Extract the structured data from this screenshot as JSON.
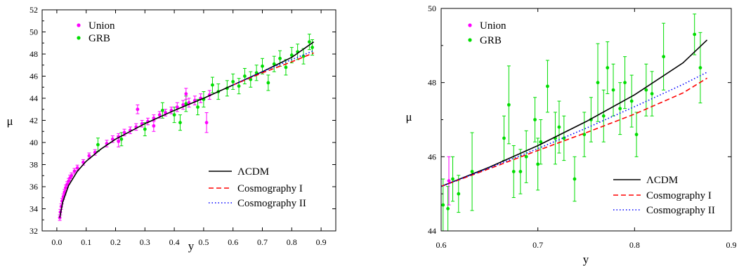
{
  "chart_data": [
    {
      "type": "scatter",
      "xlabel": "y",
      "ylabel": "μ",
      "xlim": [
        -0.05,
        0.95
      ],
      "ylim": [
        32,
        52
      ],
      "xticks": [
        0.0,
        0.1,
        0.2,
        0.3,
        0.4,
        0.5,
        0.6,
        0.7,
        0.8,
        0.9
      ],
      "yticks": [
        32,
        34,
        36,
        38,
        40,
        42,
        44,
        46,
        48,
        50,
        52
      ],
      "legend_points_position": "top-left",
      "legend_lines_position": "bottom-right",
      "series": [
        {
          "name": "Union",
          "kind": "points",
          "color": "#ff00ff",
          "points": [
            {
              "x": 0.01,
              "y": 33.2,
              "err": 0.25
            },
            {
              "x": 0.012,
              "y": 33.7,
              "err": 0.25
            },
            {
              "x": 0.015,
              "y": 34.2,
              "err": 0.25
            },
            {
              "x": 0.018,
              "y": 34.7,
              "err": 0.25
            },
            {
              "x": 0.022,
              "y": 35.1,
              "err": 0.25
            },
            {
              "x": 0.026,
              "y": 35.5,
              "err": 0.25
            },
            {
              "x": 0.03,
              "y": 35.9,
              "err": 0.25
            },
            {
              "x": 0.035,
              "y": 36.2,
              "err": 0.25
            },
            {
              "x": 0.04,
              "y": 36.5,
              "err": 0.25
            },
            {
              "x": 0.045,
              "y": 36.8,
              "err": 0.25
            },
            {
              "x": 0.05,
              "y": 37.0,
              "err": 0.25
            },
            {
              "x": 0.06,
              "y": 37.4,
              "err": 0.25
            },
            {
              "x": 0.07,
              "y": 37.7,
              "err": 0.25
            },
            {
              "x": 0.09,
              "y": 38.2,
              "err": 0.25
            },
            {
              "x": 0.11,
              "y": 38.8,
              "err": 0.25
            },
            {
              "x": 0.13,
              "y": 39.1,
              "err": 0.25
            },
            {
              "x": 0.17,
              "y": 39.9,
              "err": 0.3
            },
            {
              "x": 0.19,
              "y": 40.3,
              "err": 0.3
            },
            {
              "x": 0.21,
              "y": 40.5,
              "err": 0.3
            },
            {
              "x": 0.23,
              "y": 40.9,
              "err": 0.3
            },
            {
              "x": 0.25,
              "y": 41.1,
              "err": 0.3
            },
            {
              "x": 0.27,
              "y": 41.4,
              "err": 0.3
            },
            {
              "x": 0.29,
              "y": 41.7,
              "err": 0.3
            },
            {
              "x": 0.31,
              "y": 41.9,
              "err": 0.3
            },
            {
              "x": 0.33,
              "y": 42.2,
              "err": 0.3
            },
            {
              "x": 0.35,
              "y": 42.5,
              "err": 0.3
            },
            {
              "x": 0.37,
              "y": 42.7,
              "err": 0.3
            },
            {
              "x": 0.39,
              "y": 42.9,
              "err": 0.3
            },
            {
              "x": 0.41,
              "y": 43.2,
              "err": 0.4
            },
            {
              "x": 0.43,
              "y": 43.4,
              "err": 0.4
            },
            {
              "x": 0.45,
              "y": 43.6,
              "err": 0.4
            },
            {
              "x": 0.47,
              "y": 43.8,
              "err": 0.4
            },
            {
              "x": 0.49,
              "y": 44.0,
              "err": 0.4
            },
            {
              "x": 0.51,
              "y": 41.8,
              "err": 0.9
            },
            {
              "x": 0.52,
              "y": 44.3,
              "err": 0.4
            },
            {
              "x": 0.21,
              "y": 40.1,
              "err": 0.5
            },
            {
              "x": 0.275,
              "y": 43.0,
              "err": 0.4
            },
            {
              "x": 0.33,
              "y": 41.5,
              "err": 0.5
            },
            {
              "x": 0.44,
              "y": 44.4,
              "err": 0.5
            }
          ]
        },
        {
          "name": "GRB",
          "kind": "points",
          "color": "#00dd00",
          "points": [
            {
              "x": 0.14,
              "y": 39.8,
              "err": 0.6
            },
            {
              "x": 0.22,
              "y": 40.3,
              "err": 0.6
            },
            {
              "x": 0.3,
              "y": 41.2,
              "err": 0.6
            },
            {
              "x": 0.36,
              "y": 42.9,
              "err": 0.7
            },
            {
              "x": 0.4,
              "y": 42.5,
              "err": 0.7
            },
            {
              "x": 0.42,
              "y": 41.8,
              "err": 0.7
            },
            {
              "x": 0.44,
              "y": 43.5,
              "err": 0.7
            },
            {
              "x": 0.48,
              "y": 43.2,
              "err": 0.7
            },
            {
              "x": 0.5,
              "y": 43.9,
              "err": 0.7
            },
            {
              "x": 0.53,
              "y": 45.2,
              "err": 0.7
            },
            {
              "x": 0.55,
              "y": 44.6,
              "err": 0.7
            },
            {
              "x": 0.58,
              "y": 44.9,
              "err": 0.7
            },
            {
              "x": 0.6,
              "y": 45.5,
              "err": 0.7
            },
            {
              "x": 0.62,
              "y": 45.1,
              "err": 0.7
            },
            {
              "x": 0.64,
              "y": 46.0,
              "err": 0.7
            },
            {
              "x": 0.66,
              "y": 45.7,
              "err": 0.7
            },
            {
              "x": 0.68,
              "y": 46.3,
              "err": 0.7
            },
            {
              "x": 0.7,
              "y": 46.9,
              "err": 0.7
            },
            {
              "x": 0.72,
              "y": 45.4,
              "err": 0.7
            },
            {
              "x": 0.74,
              "y": 47.1,
              "err": 0.7
            },
            {
              "x": 0.76,
              "y": 47.6,
              "err": 0.7
            },
            {
              "x": 0.78,
              "y": 46.8,
              "err": 0.7
            },
            {
              "x": 0.8,
              "y": 47.9,
              "err": 0.7
            },
            {
              "x": 0.82,
              "y": 48.2,
              "err": 0.7
            },
            {
              "x": 0.84,
              "y": 47.8,
              "err": 0.7
            },
            {
              "x": 0.86,
              "y": 49.1,
              "err": 0.7
            },
            {
              "x": 0.87,
              "y": 48.6,
              "err": 0.7
            }
          ]
        },
        {
          "name": "ΛCDM",
          "kind": "line",
          "color": "#000000",
          "dash": "",
          "x": [
            0.01,
            0.02,
            0.04,
            0.07,
            0.1,
            0.15,
            0.2,
            0.3,
            0.4,
            0.5,
            0.6,
            0.7,
            0.8,
            0.875
          ],
          "y": [
            33.2,
            34.6,
            36.1,
            37.4,
            38.3,
            39.4,
            40.3,
            41.7,
            42.9,
            44.0,
            45.2,
            46.4,
            47.7,
            49.1
          ]
        },
        {
          "name": "Cosmography I",
          "kind": "line",
          "color": "#ff0000",
          "dash": "7,4",
          "x": [
            0.6,
            0.7,
            0.8,
            0.875
          ],
          "y": [
            45.2,
            46.3,
            47.3,
            48.1
          ]
        },
        {
          "name": "Cosmography II",
          "kind": "line",
          "color": "#0000ff",
          "dash": "1.5,3",
          "x": [
            0.6,
            0.7,
            0.8,
            0.875
          ],
          "y": [
            45.2,
            46.4,
            47.5,
            48.3
          ]
        }
      ]
    },
    {
      "type": "scatter",
      "xlabel": "y",
      "ylabel": "μ",
      "xlim": [
        0.6,
        0.9
      ],
      "ylim": [
        44,
        50
      ],
      "xticks": [
        0.6,
        0.7,
        0.8,
        0.9
      ],
      "yticks": [
        44,
        46,
        48,
        50
      ],
      "legend_points_position": "top-left",
      "legend_lines_position": "bottom-right",
      "series": [
        {
          "name": "Union",
          "kind": "points",
          "color": "#ff00ff",
          "points": [
            {
              "x": 0.608,
              "y": 45.35,
              "err": 0.65
            }
          ]
        },
        {
          "name": "GRB",
          "kind": "points",
          "color": "#00dd00",
          "points": [
            {
              "x": 0.602,
              "y": 44.7,
              "err": 0.7
            },
            {
              "x": 0.607,
              "y": 44.6,
              "err": 0.6
            },
            {
              "x": 0.612,
              "y": 45.4,
              "err": 0.6
            },
            {
              "x": 0.618,
              "y": 45.0,
              "err": 0.5
            },
            {
              "x": 0.632,
              "y": 45.6,
              "err": 1.05
            },
            {
              "x": 0.665,
              "y": 46.5,
              "err": 0.6
            },
            {
              "x": 0.67,
              "y": 47.4,
              "err": 1.05
            },
            {
              "x": 0.675,
              "y": 45.6,
              "err": 0.7
            },
            {
              "x": 0.682,
              "y": 45.6,
              "err": 0.6
            },
            {
              "x": 0.688,
              "y": 46.0,
              "err": 0.7
            },
            {
              "x": 0.697,
              "y": 47.0,
              "err": 0.6
            },
            {
              "x": 0.7,
              "y": 45.8,
              "err": 0.7
            },
            {
              "x": 0.703,
              "y": 46.4,
              "err": 0.6
            },
            {
              "x": 0.71,
              "y": 47.9,
              "err": 0.7
            },
            {
              "x": 0.718,
              "y": 46.5,
              "err": 0.7
            },
            {
              "x": 0.722,
              "y": 46.8,
              "err": 0.7
            },
            {
              "x": 0.727,
              "y": 46.5,
              "err": 0.6
            },
            {
              "x": 0.738,
              "y": 45.4,
              "err": 0.6
            },
            {
              "x": 0.748,
              "y": 46.6,
              "err": 0.6
            },
            {
              "x": 0.755,
              "y": 47.0,
              "err": 0.6
            },
            {
              "x": 0.762,
              "y": 48.0,
              "err": 1.05
            },
            {
              "x": 0.768,
              "y": 47.1,
              "err": 0.7
            },
            {
              "x": 0.772,
              "y": 48.4,
              "err": 0.7
            },
            {
              "x": 0.778,
              "y": 47.8,
              "err": 0.7
            },
            {
              "x": 0.785,
              "y": 47.3,
              "err": 0.7
            },
            {
              "x": 0.79,
              "y": 48.0,
              "err": 0.7
            },
            {
              "x": 0.797,
              "y": 47.5,
              "err": 0.7
            },
            {
              "x": 0.802,
              "y": 46.6,
              "err": 0.6
            },
            {
              "x": 0.812,
              "y": 47.8,
              "err": 0.7
            },
            {
              "x": 0.818,
              "y": 47.7,
              "err": 0.6
            },
            {
              "x": 0.83,
              "y": 48.7,
              "err": 0.9
            },
            {
              "x": 0.862,
              "y": 49.3,
              "err": 0.55
            },
            {
              "x": 0.868,
              "y": 48.4,
              "err": 0.95
            }
          ]
        },
        {
          "name": "ΛCDM",
          "kind": "line",
          "color": "#000000",
          "dash": "",
          "x": [
            0.6,
            0.65,
            0.7,
            0.75,
            0.8,
            0.85,
            0.875
          ],
          "y": [
            45.2,
            45.72,
            46.3,
            46.95,
            47.67,
            48.53,
            49.15
          ]
        },
        {
          "name": "Cosmography I",
          "kind": "line",
          "color": "#ff0000",
          "dash": "7,4",
          "x": [
            0.6,
            0.65,
            0.7,
            0.75,
            0.8,
            0.85,
            0.875
          ],
          "y": [
            45.2,
            45.68,
            46.17,
            46.65,
            47.15,
            47.72,
            48.12
          ]
        },
        {
          "name": "Cosmography II",
          "kind": "line",
          "color": "#0000ff",
          "dash": "1.5,3",
          "x": [
            0.6,
            0.65,
            0.7,
            0.75,
            0.8,
            0.85,
            0.875
          ],
          "y": [
            45.2,
            45.7,
            46.22,
            46.77,
            47.35,
            47.95,
            48.28
          ]
        }
      ]
    }
  ]
}
